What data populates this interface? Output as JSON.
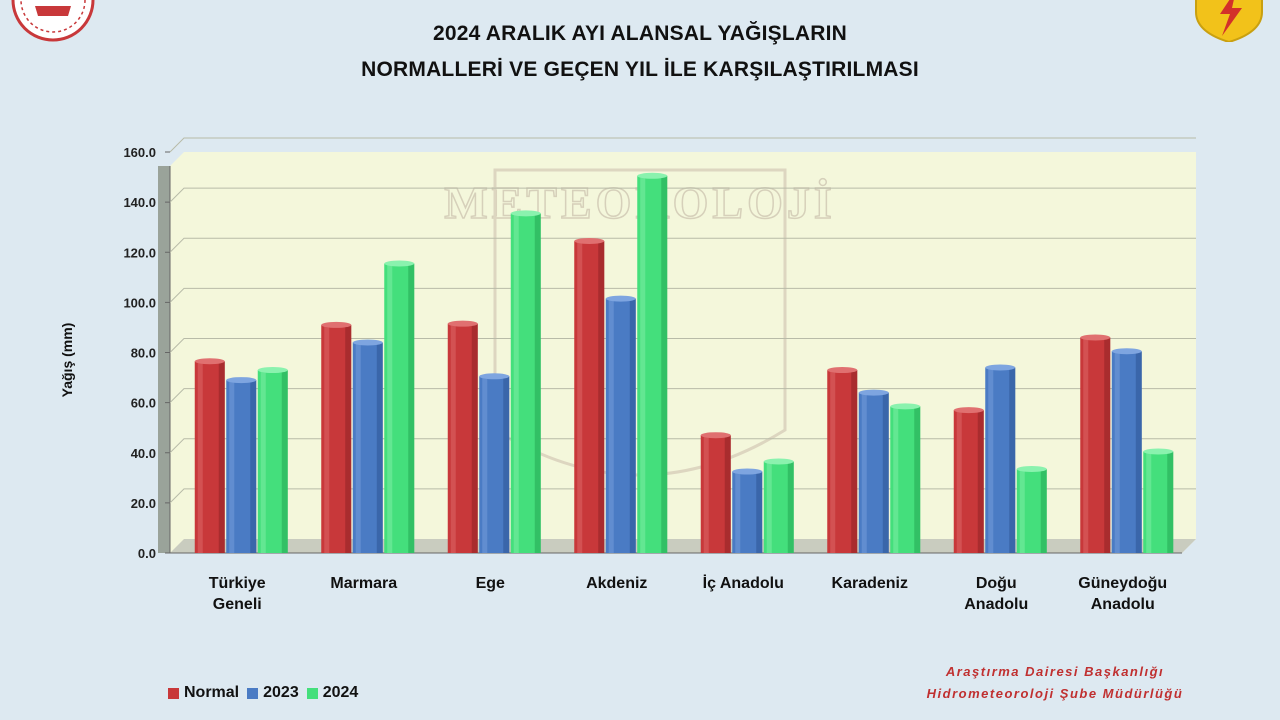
{
  "title": {
    "line1": "2024 ARALIK AYI ALANSAL YAĞIŞLARIN",
    "line2": "NORMALLERİ VE GEÇEN YIL İLE KARŞILAŞTIRILMASI"
  },
  "logos": {
    "left": "government-seal",
    "right": "meteorology-logo",
    "watermark_text": "METEOROLOJİ"
  },
  "credit": {
    "line1": "Araştırma Dairesi Başkanlığı",
    "line2": "Hidrometeoroloji Şube Müdürlüğü"
  },
  "colors": {
    "normal": "#c8383a",
    "y2023": "#4a7bc4",
    "y2024": "#44df7c",
    "plot_bg": "#f4f7db",
    "page_bg": "#dde9f1",
    "credit_text": "#c03030"
  },
  "chart_data": {
    "type": "bar",
    "title": "2024 ARALIK AYI ALANSAL YAĞIŞLARIN NORMALLERİ VE GEÇEN YIL İLE KARŞILAŞTIRILMASI",
    "xlabel": "",
    "ylabel": "Yağış (mm)",
    "ylim": [
      0,
      160
    ],
    "yticks": [
      "0.0",
      "20.0",
      "40.0",
      "60.0",
      "80.0",
      "100.0",
      "120.0",
      "140.0",
      "160.0"
    ],
    "grid": true,
    "legend_position": "bottom-left",
    "categories": [
      "Türkiye Geneli",
      "Marmara",
      "Ege",
      "Akdeniz",
      "İç Anadolu",
      "Karadeniz",
      "Doğu Anadolu",
      "Güneydoğu Anadolu"
    ],
    "category_lines": [
      [
        "Türkiye",
        "Geneli"
      ],
      [
        "Marmara"
      ],
      [
        "Ege"
      ],
      [
        "Akdeniz"
      ],
      [
        "İç Anadolu"
      ],
      [
        "Karadeniz"
      ],
      [
        "Doğu",
        "Anadolu"
      ],
      [
        "Güneydoğu",
        "Anadolu"
      ]
    ],
    "series": [
      {
        "name": "Normal",
        "values": [
          76.5,
          91.0,
          91.5,
          124.5,
          47.0,
          73.0,
          57.0,
          86.0
        ]
      },
      {
        "name": "2023",
        "values": [
          69.0,
          84.0,
          70.5,
          101.5,
          32.5,
          64.0,
          74.0,
          80.5
        ]
      },
      {
        "name": "2024",
        "values": [
          73.0,
          115.5,
          135.5,
          150.5,
          36.5,
          58.5,
          33.5,
          40.5
        ]
      }
    ]
  }
}
